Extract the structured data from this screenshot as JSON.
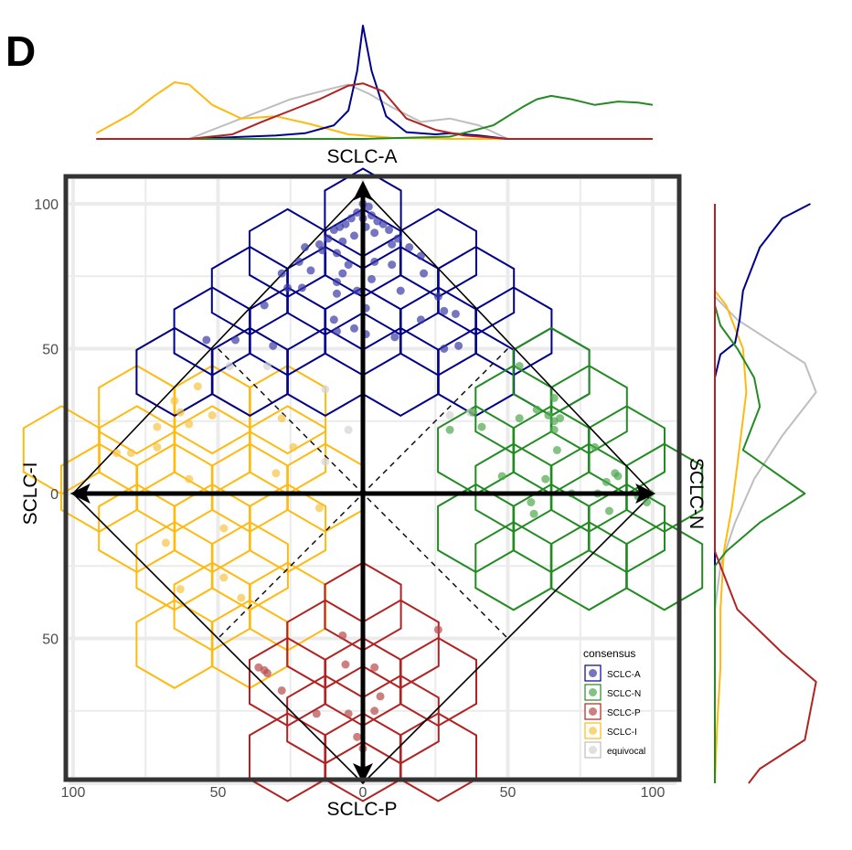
{
  "panel_label": "D",
  "chart_data": {
    "type": "scatter",
    "axes": {
      "top_label": "SCLC-A",
      "bottom_label": "SCLC-P",
      "left_label": "SCLC-I",
      "right_label": "SCLC-N",
      "x_range": [
        -100,
        100
      ],
      "y_range": [
        -100,
        100
      ],
      "x_ticks": [
        {
          "value": -100,
          "label": "100"
        },
        {
          "value": -50,
          "label": "50"
        },
        {
          "value": 0,
          "label": "0"
        },
        {
          "value": 50,
          "label": "50"
        },
        {
          "value": 100,
          "label": "100"
        }
      ],
      "y_ticks": [
        {
          "value": 100,
          "label": "100"
        },
        {
          "value": 50,
          "label": "50"
        },
        {
          "value": 0,
          "label": "0"
        },
        {
          "value": -50,
          "label": "50"
        }
      ],
      "grid": true
    },
    "legend": {
      "title": "consensus",
      "placement": "bottom-right",
      "entries": [
        {
          "key": "A",
          "label": "SCLC-A"
        },
        {
          "key": "N",
          "label": "SCLC-N"
        },
        {
          "key": "P",
          "label": "SCLC-P"
        },
        {
          "key": "I",
          "label": "SCLC-I"
        },
        {
          "key": "E",
          "label": "equivocal"
        }
      ]
    },
    "colors": {
      "A": {
        "point": "#3a3aa6",
        "hex": "#00008b",
        "line": "#00008b"
      },
      "N": {
        "point": "#4ea84e",
        "hex": "#228b22",
        "line": "#228b22"
      },
      "P": {
        "point": "#b84a4a",
        "hex": "#b22222",
        "line": "#b22222"
      },
      "I": {
        "point": "#f7c543",
        "hex": "#ffb90f",
        "line": "#ffb90f"
      },
      "E": {
        "point": "#d3d3d3",
        "hex": "#bebebe",
        "line": "#bebebe"
      }
    },
    "hexbins": {
      "A": [
        [
          0,
          97
        ],
        [
          -26,
          83
        ],
        [
          0,
          83
        ],
        [
          26,
          83
        ],
        [
          -39,
          70
        ],
        [
          -13,
          70
        ],
        [
          13,
          70
        ],
        [
          39,
          70
        ],
        [
          -52,
          56
        ],
        [
          -26,
          56
        ],
        [
          0,
          56
        ],
        [
          26,
          56
        ],
        [
          52,
          56
        ],
        [
          -65,
          42
        ],
        [
          -39,
          42
        ],
        [
          -13,
          42
        ],
        [
          13,
          42
        ],
        [
          39,
          42
        ],
        [
          65,
          42
        ]
      ],
      "N": [
        [
          65,
          42
        ],
        [
          52,
          29
        ],
        [
          78,
          29
        ],
        [
          39,
          15
        ],
        [
          65,
          15
        ],
        [
          91,
          15
        ],
        [
          52,
          2
        ],
        [
          78,
          2
        ],
        [
          104,
          2
        ],
        [
          39,
          -12
        ],
        [
          65,
          -12
        ],
        [
          91,
          -12
        ],
        [
          52,
          -25
        ],
        [
          78,
          -25
        ],
        [
          104,
          -25
        ]
      ],
      "P": [
        [
          0,
          -39
        ],
        [
          -13,
          -52
        ],
        [
          13,
          -52
        ],
        [
          -26,
          -65
        ],
        [
          0,
          -65
        ],
        [
          26,
          -65
        ],
        [
          -13,
          -78
        ],
        [
          13,
          -78
        ],
        [
          0,
          -91
        ],
        [
          -26,
          -91
        ],
        [
          26,
          -91
        ]
      ],
      "I": [
        [
          -65,
          42
        ],
        [
          -39,
          42
        ],
        [
          -78,
          29
        ],
        [
          -52,
          29
        ],
        [
          -26,
          29
        ],
        [
          -104,
          15
        ],
        [
          -78,
          15
        ],
        [
          -52,
          15
        ],
        [
          -26,
          15
        ],
        [
          -91,
          2
        ],
        [
          -65,
          2
        ],
        [
          -39,
          2
        ],
        [
          -13,
          2
        ],
        [
          -78,
          -12
        ],
        [
          -52,
          -12
        ],
        [
          -26,
          -12
        ],
        [
          -65,
          -25
        ],
        [
          -39,
          -25
        ],
        [
          -52,
          -39
        ],
        [
          -26,
          -39
        ],
        [
          -39,
          -52
        ],
        [
          -65,
          -52
        ]
      ]
    },
    "points": {
      "A": [
        [
          0,
          100
        ],
        [
          2,
          99
        ],
        [
          -2,
          97
        ],
        [
          3,
          96
        ],
        [
          -4,
          95
        ],
        [
          0,
          95
        ],
        [
          5,
          94
        ],
        [
          -6,
          93
        ],
        [
          7,
          93
        ],
        [
          -8,
          92
        ],
        [
          1,
          92
        ],
        [
          -10,
          91
        ],
        [
          9,
          91
        ],
        [
          4,
          90
        ],
        [
          -3,
          89
        ],
        [
          -12,
          88
        ],
        [
          12,
          88
        ],
        [
          -7,
          87
        ],
        [
          10,
          86
        ],
        [
          -15,
          86
        ],
        [
          -20,
          85
        ],
        [
          16,
          85
        ],
        [
          -14,
          84
        ],
        [
          -9,
          83
        ],
        [
          20,
          82
        ],
        [
          -22,
          80
        ],
        [
          4,
          80
        ],
        [
          -5,
          79
        ],
        [
          10,
          79
        ],
        [
          -18,
          77
        ],
        [
          -28,
          76
        ],
        [
          -7,
          76
        ],
        [
          21,
          76
        ],
        [
          3,
          74
        ],
        [
          -9,
          73
        ],
        [
          -26,
          71
        ],
        [
          -21,
          71
        ],
        [
          -2,
          70
        ],
        [
          13,
          70
        ],
        [
          -9,
          69
        ],
        [
          26,
          68
        ],
        [
          -34,
          65
        ],
        [
          1,
          64
        ],
        [
          28,
          63
        ],
        [
          32,
          62
        ],
        [
          -10,
          60
        ],
        [
          20,
          60
        ],
        [
          -3,
          57
        ],
        [
          -9,
          56
        ],
        [
          1,
          55
        ],
        [
          11,
          54
        ],
        [
          -31,
          51
        ],
        [
          28,
          50
        ],
        [
          33,
          51
        ],
        [
          -54,
          53
        ],
        [
          -44,
          53
        ]
      ],
      "N": [
        [
          54,
          44
        ],
        [
          38,
          28
        ],
        [
          30,
          22
        ],
        [
          41,
          23
        ],
        [
          54,
          26
        ],
        [
          64,
          27
        ],
        [
          66,
          25
        ],
        [
          68,
          26
        ],
        [
          66,
          33
        ],
        [
          60,
          29
        ],
        [
          66,
          22
        ],
        [
          67,
          15
        ],
        [
          80,
          16
        ],
        [
          48,
          6
        ],
        [
          63,
          5
        ],
        [
          84,
          4
        ],
        [
          87,
          7
        ],
        [
          88,
          6
        ],
        [
          72,
          0
        ],
        [
          81,
          0
        ],
        [
          95,
          -1
        ],
        [
          97,
          0
        ],
        [
          99,
          0
        ],
        [
          98,
          -3
        ],
        [
          58,
          -3
        ],
        [
          59,
          -7
        ],
        [
          85,
          -6
        ]
      ],
      "P": [
        [
          26,
          -47
        ],
        [
          -7,
          -49
        ],
        [
          -6,
          -59
        ],
        [
          4,
          -60
        ],
        [
          -36,
          -60
        ],
        [
          -34,
          -61
        ],
        [
          -33,
          -62
        ],
        [
          -28,
          -68
        ],
        [
          6,
          -70
        ],
        [
          -16,
          -76
        ],
        [
          -5,
          -76
        ],
        [
          4,
          -75
        ],
        [
          -2,
          -84
        ],
        [
          0,
          -88
        ]
      ],
      "I": [
        [
          -57,
          37
        ],
        [
          -65,
          32
        ],
        [
          -63,
          28
        ],
        [
          -71,
          23
        ],
        [
          -60,
          24
        ],
        [
          -71,
          16
        ],
        [
          -52,
          27
        ],
        [
          -85,
          14
        ],
        [
          -80,
          14
        ],
        [
          -48,
          -12
        ],
        [
          -60,
          5
        ],
        [
          -68,
          -17
        ],
        [
          -63,
          -33
        ],
        [
          -48,
          -29
        ],
        [
          -42,
          -36
        ],
        [
          -15,
          -5
        ],
        [
          -30,
          7
        ],
        [
          -24,
          16
        ],
        [
          -28,
          26
        ]
      ],
      "E": [
        [
          -46,
          44
        ],
        [
          -33,
          44
        ],
        [
          -13,
          36
        ],
        [
          -5,
          22
        ],
        [
          -13,
          11
        ],
        [
          30,
          27
        ],
        [
          37,
          28
        ]
      ]
    },
    "top_density": {
      "A": [
        [
          -92,
          0
        ],
        [
          -60,
          0
        ],
        [
          -40,
          2
        ],
        [
          -30,
          3
        ],
        [
          -20,
          5
        ],
        [
          -10,
          12
        ],
        [
          -5,
          25
        ],
        [
          -2,
          60
        ],
        [
          0,
          100
        ],
        [
          3,
          60
        ],
        [
          8,
          20
        ],
        [
          15,
          6
        ],
        [
          25,
          4
        ],
        [
          30,
          5
        ],
        [
          40,
          3
        ],
        [
          50,
          0
        ],
        [
          100,
          0
        ]
      ],
      "N": [
        [
          -92,
          0
        ],
        [
          0,
          0
        ],
        [
          30,
          2
        ],
        [
          45,
          12
        ],
        [
          55,
          28
        ],
        [
          60,
          35
        ],
        [
          65,
          38
        ],
        [
          72,
          35
        ],
        [
          80,
          30
        ],
        [
          88,
          33
        ],
        [
          95,
          32
        ],
        [
          100,
          30
        ]
      ],
      "P": [
        [
          -92,
          0
        ],
        [
          -60,
          0
        ],
        [
          -45,
          4
        ],
        [
          -35,
          15
        ],
        [
          -25,
          25
        ],
        [
          -15,
          35
        ],
        [
          -5,
          47
        ],
        [
          0,
          49
        ],
        [
          7,
          42
        ],
        [
          15,
          18
        ],
        [
          25,
          8
        ],
        [
          35,
          3
        ],
        [
          50,
          0
        ],
        [
          100,
          0
        ]
      ],
      "I": [
        [
          -92,
          5
        ],
        [
          -80,
          22
        ],
        [
          -72,
          38
        ],
        [
          -65,
          50
        ],
        [
          -60,
          48
        ],
        [
          -52,
          30
        ],
        [
          -42,
          18
        ],
        [
          -30,
          20
        ],
        [
          -18,
          13
        ],
        [
          -5,
          4
        ],
        [
          10,
          1
        ],
        [
          30,
          0
        ],
        [
          100,
          0
        ]
      ],
      "E": [
        [
          -92,
          0
        ],
        [
          -60,
          0
        ],
        [
          -40,
          20
        ],
        [
          -25,
          35
        ],
        [
          -10,
          45
        ],
        [
          -5,
          48
        ],
        [
          2,
          40
        ],
        [
          10,
          28
        ],
        [
          20,
          15
        ],
        [
          30,
          18
        ],
        [
          40,
          12
        ],
        [
          50,
          0
        ],
        [
          100,
          0
        ]
      ]
    },
    "right_density": {
      "A": [
        [
          100,
          85
        ],
        [
          95,
          60
        ],
        [
          85,
          40
        ],
        [
          70,
          25
        ],
        [
          60,
          22
        ],
        [
          52,
          18
        ],
        [
          48,
          5
        ],
        [
          40,
          0
        ],
        [
          -100,
          0
        ]
      ],
      "N": [
        [
          100,
          0
        ],
        [
          65,
          0
        ],
        [
          58,
          5
        ],
        [
          50,
          20
        ],
        [
          40,
          35
        ],
        [
          30,
          40
        ],
        [
          15,
          25
        ],
        [
          0,
          80
        ],
        [
          -10,
          40
        ],
        [
          -20,
          10
        ],
        [
          -25,
          0
        ],
        [
          -100,
          0
        ]
      ],
      "P": [
        [
          100,
          0
        ],
        [
          -20,
          0
        ],
        [
          -40,
          20
        ],
        [
          -55,
          60
        ],
        [
          -65,
          90
        ],
        [
          -75,
          85
        ],
        [
          -85,
          80
        ],
        [
          -95,
          40
        ],
        [
          -100,
          30
        ]
      ],
      "I": [
        [
          100,
          0
        ],
        [
          70,
          0
        ],
        [
          65,
          10
        ],
        [
          50,
          25
        ],
        [
          35,
          28
        ],
        [
          10,
          20
        ],
        [
          -5,
          15
        ],
        [
          -20,
          8
        ],
        [
          -40,
          5
        ],
        [
          -60,
          5
        ],
        [
          -80,
          2
        ],
        [
          -100,
          0
        ]
      ],
      "E": [
        [
          100,
          0
        ],
        [
          68,
          0
        ],
        [
          60,
          20
        ],
        [
          55,
          40
        ],
        [
          45,
          80
        ],
        [
          35,
          90
        ],
        [
          20,
          60
        ],
        [
          5,
          35
        ],
        [
          -10,
          18
        ],
        [
          -25,
          5
        ],
        [
          -40,
          0
        ],
        [
          -100,
          0
        ]
      ]
    }
  }
}
